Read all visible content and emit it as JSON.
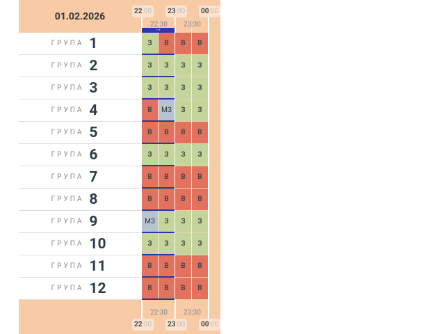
{
  "date": "01.02.2026",
  "hours": [
    {
      "h": "22",
      "m": ":00"
    },
    {
      "h": "23",
      "m": ":00"
    },
    {
      "h": "00",
      "m": ":00"
    }
  ],
  "half_hours": [
    "22:30",
    "23:30"
  ],
  "group_label": "ГРУПА",
  "more_indicator": "•••",
  "colors": {
    "on": "#c3d59b",
    "off": "#e2725e",
    "maybe": "#b5c4cf",
    "background": "#f6cba6"
  },
  "groups": [
    {
      "n": "1",
      "cells": [
        "З",
        "В",
        "В",
        "В"
      ]
    },
    {
      "n": "2",
      "cells": [
        "З",
        "З",
        "З",
        "З"
      ]
    },
    {
      "n": "3",
      "cells": [
        "З",
        "З",
        "З",
        "З"
      ]
    },
    {
      "n": "4",
      "cells": [
        "В",
        "МЗ",
        "З",
        "З"
      ]
    },
    {
      "n": "5",
      "cells": [
        "В",
        "В",
        "В",
        "В"
      ]
    },
    {
      "n": "6",
      "cells": [
        "З",
        "З",
        "З",
        "З"
      ]
    },
    {
      "n": "7",
      "cells": [
        "В",
        "В",
        "В",
        "В"
      ]
    },
    {
      "n": "8",
      "cells": [
        "В",
        "В",
        "В",
        "В"
      ]
    },
    {
      "n": "9",
      "cells": [
        "МЗ",
        "З",
        "З",
        "З"
      ]
    },
    {
      "n": "10",
      "cells": [
        "З",
        "З",
        "З",
        "З"
      ]
    },
    {
      "n": "11",
      "cells": [
        "В",
        "В",
        "В",
        "В"
      ]
    },
    {
      "n": "12",
      "cells": [
        "В",
        "В",
        "В",
        "В"
      ]
    }
  ]
}
